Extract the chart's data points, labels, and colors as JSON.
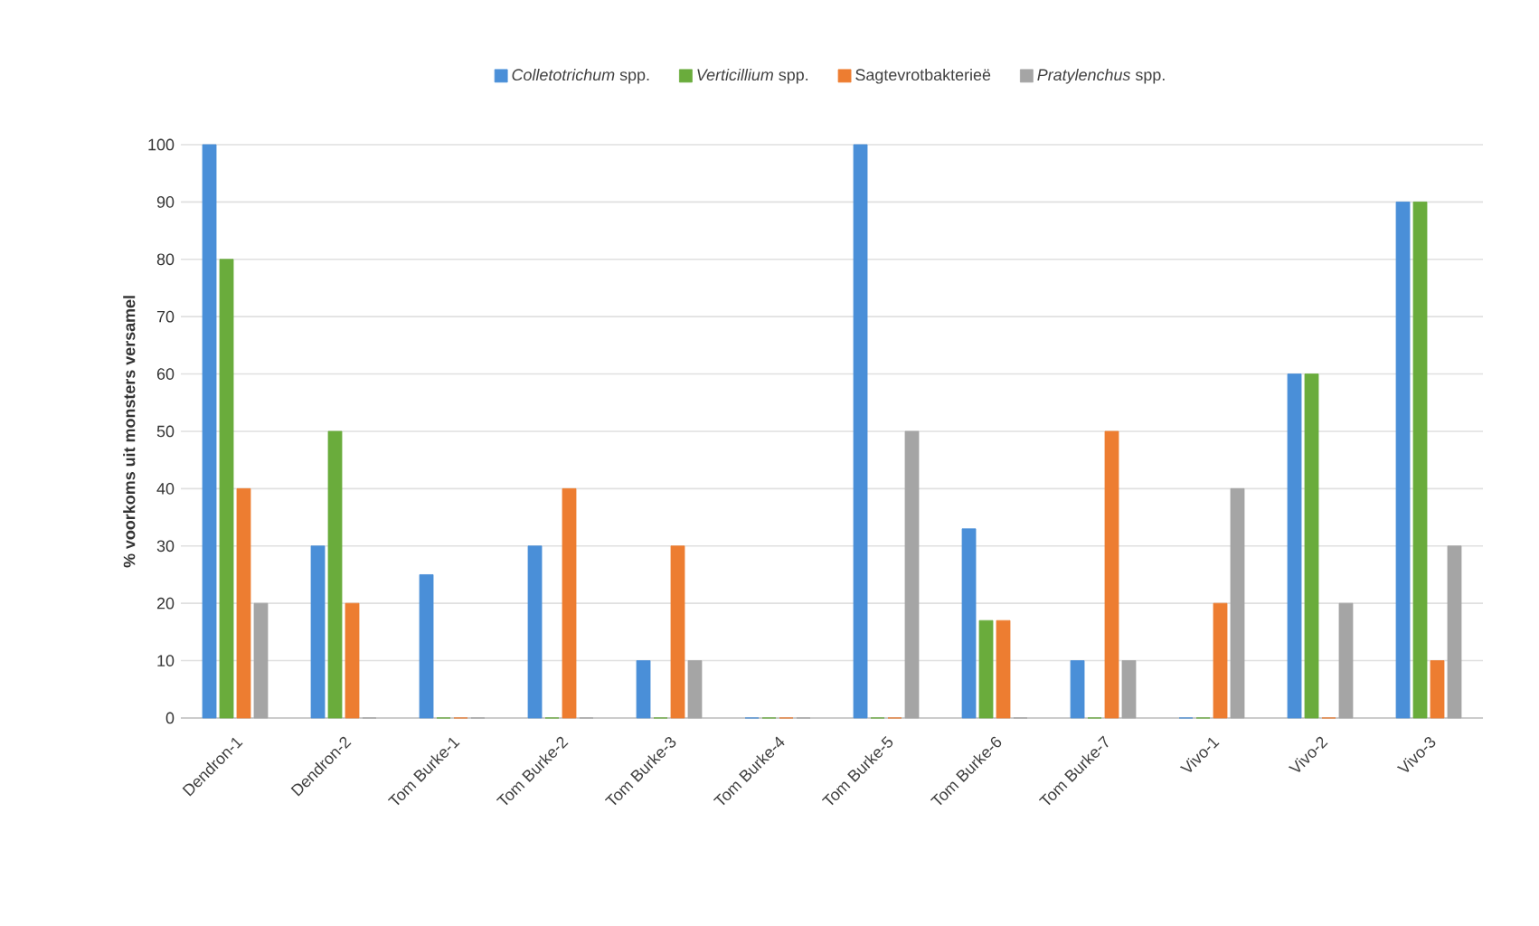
{
  "chart_data": {
    "type": "bar",
    "ylabel": "% voorkoms uit monsters versamel",
    "categories": [
      "Dendron-1",
      "Dendron-2",
      "Tom Burke-1",
      "Tom Burke-2",
      "Tom Burke-3",
      "Tom Burke-4",
      "Tom Burke-5",
      "Tom Burke-6",
      "Tom Burke-7",
      "Vivo-1",
      "Vivo-2",
      "Vivo-3"
    ],
    "series": [
      {
        "name": "*Colletotrichum* spp.",
        "color": "#4a8fd8",
        "values": [
          100,
          30,
          25,
          30,
          10,
          0,
          100,
          33,
          10,
          0,
          60,
          90
        ]
      },
      {
        "name": "*Verticillium* spp.",
        "color": "#6aac3c",
        "values": [
          80,
          50,
          0,
          0,
          0,
          0,
          0,
          17,
          0,
          0,
          60,
          90
        ]
      },
      {
        "name": "Sagtevrotbakterieë",
        "color": "#ed7d31",
        "values": [
          40,
          20,
          0,
          40,
          30,
          0,
          0,
          17,
          50,
          20,
          0,
          10
        ]
      },
      {
        "name": "*Pratylenchus* spp.",
        "color": "#a5a5a5",
        "values": [
          20,
          0,
          0,
          0,
          10,
          0,
          50,
          0,
          10,
          40,
          20,
          30
        ]
      }
    ],
    "ylim": [
      0,
      100
    ],
    "yticks": [
      0,
      10,
      20,
      30,
      40,
      50,
      60,
      70,
      80,
      90,
      100
    ],
    "grid": "y",
    "legend": "top"
  }
}
